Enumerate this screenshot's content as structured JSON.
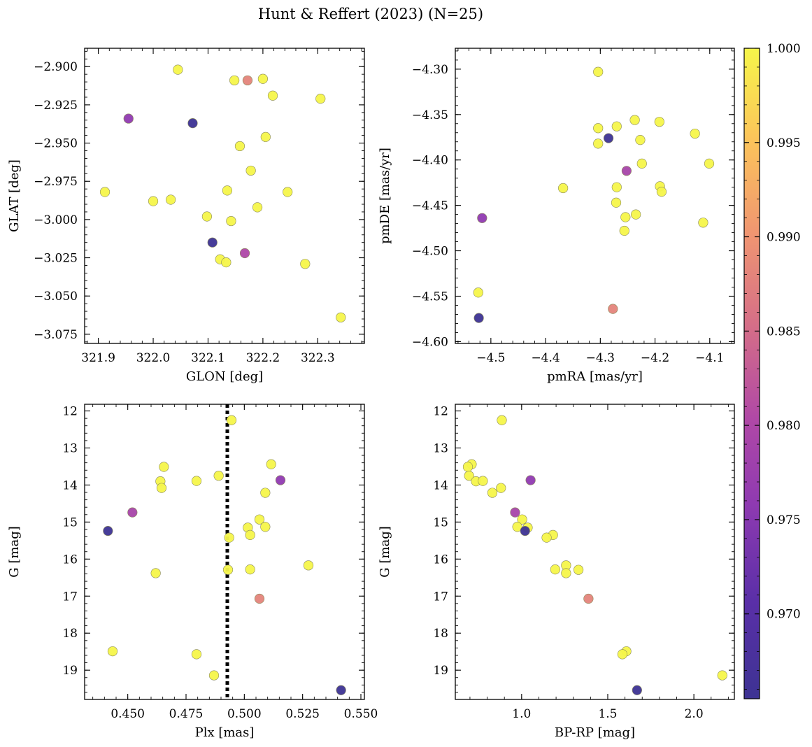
{
  "title": "Hunt & Reffert (2023) (N=25)",
  "colorbar": {
    "colormap": "plasma",
    "range": [
      0.9655,
      1.0
    ],
    "ticks": [
      0.97,
      0.975,
      0.98,
      0.985,
      0.99,
      0.995,
      1.0
    ],
    "tick_labels": [
      "0.970",
      "0.975",
      "0.980",
      "0.985",
      "0.990",
      "0.995",
      "1.000"
    ]
  },
  "chart_data": [
    {
      "type": "scatter",
      "id": "glon-glat",
      "xlabel": "GLON [deg]",
      "ylabel": "GLAT [deg]",
      "xlim": [
        321.875,
        322.385
      ],
      "ylim": [
        -2.888,
        -3.081
      ],
      "xticks": [
        321.9,
        322.0,
        322.1,
        322.2,
        322.3
      ],
      "xtick_labels": [
        "321.9",
        "322.0",
        "322.1",
        "322.2",
        "322.3"
      ],
      "yticks": [
        -2.9,
        -2.925,
        -2.95,
        -2.975,
        -3.0,
        -3.025,
        -3.05,
        -3.075
      ],
      "ytick_labels": [
        "−2.900",
        "−2.925",
        "−2.950",
        "−2.975",
        "−3.000",
        "−3.025",
        "−3.050",
        "−3.075"
      ],
      "points": [
        {
          "x": 322.045,
          "y": -2.902,
          "c": 1.0
        },
        {
          "x": 322.148,
          "y": -2.909,
          "c": 1.0
        },
        {
          "x": 322.172,
          "y": -2.909,
          "c": 0.988
        },
        {
          "x": 322.2,
          "y": -2.908,
          "c": 1.0
        },
        {
          "x": 322.218,
          "y": -2.919,
          "c": 1.0
        },
        {
          "x": 322.305,
          "y": -2.921,
          "c": 1.0
        },
        {
          "x": 321.955,
          "y": -2.934,
          "c": 0.976
        },
        {
          "x": 322.072,
          "y": -2.937,
          "c": 0.9655
        },
        {
          "x": 322.205,
          "y": -2.946,
          "c": 1.0
        },
        {
          "x": 322.158,
          "y": -2.952,
          "c": 1.0
        },
        {
          "x": 322.178,
          "y": -2.968,
          "c": 1.0
        },
        {
          "x": 321.912,
          "y": -2.982,
          "c": 1.0
        },
        {
          "x": 322.0,
          "y": -2.988,
          "c": 1.0
        },
        {
          "x": 322.032,
          "y": -2.987,
          "c": 1.0
        },
        {
          "x": 322.135,
          "y": -2.981,
          "c": 1.0
        },
        {
          "x": 322.245,
          "y": -2.982,
          "c": 1.0
        },
        {
          "x": 322.19,
          "y": -2.992,
          "c": 1.0
        },
        {
          "x": 322.098,
          "y": -2.998,
          "c": 1.0
        },
        {
          "x": 322.142,
          "y": -3.001,
          "c": 1.0
        },
        {
          "x": 322.108,
          "y": -3.015,
          "c": 0.9655
        },
        {
          "x": 322.167,
          "y": -3.022,
          "c": 0.98
        },
        {
          "x": 322.122,
          "y": -3.026,
          "c": 1.0
        },
        {
          "x": 322.133,
          "y": -3.028,
          "c": 1.0
        },
        {
          "x": 322.277,
          "y": -3.029,
          "c": 1.0
        },
        {
          "x": 322.342,
          "y": -3.064,
          "c": 1.0
        }
      ]
    },
    {
      "type": "scatter",
      "id": "pmra-pmde",
      "xlabel": "pmRA [mas/yr]",
      "ylabel": "pmDE [mas/yr]",
      "xlim": [
        -4.565,
        -4.055
      ],
      "ylim": [
        -4.277,
        -4.602
      ],
      "xticks": [
        -4.5,
        -4.4,
        -4.3,
        -4.2,
        -4.1
      ],
      "xtick_labels": [
        "−4.5",
        "−4.4",
        "−4.3",
        "−4.2",
        "−4.1"
      ],
      "yticks": [
        -4.3,
        -4.35,
        -4.4,
        -4.45,
        -4.5,
        -4.55,
        -4.6
      ],
      "ytick_labels": [
        "−4.30",
        "−4.35",
        "−4.40",
        "−4.45",
        "−4.50",
        "−4.55",
        "−4.60"
      ],
      "points": [
        {
          "x": -4.304,
          "y": -4.303,
          "c": 1.0
        },
        {
          "x": -4.237,
          "y": -4.356,
          "c": 1.0
        },
        {
          "x": -4.192,
          "y": -4.358,
          "c": 1.0
        },
        {
          "x": -4.304,
          "y": -4.365,
          "c": 1.0
        },
        {
          "x": -4.27,
          "y": -4.363,
          "c": 1.0
        },
        {
          "x": -4.127,
          "y": -4.371,
          "c": 1.0
        },
        {
          "x": -4.285,
          "y": -4.376,
          "c": 0.9655
        },
        {
          "x": -4.227,
          "y": -4.378,
          "c": 1.0
        },
        {
          "x": -4.304,
          "y": -4.382,
          "c": 1.0
        },
        {
          "x": -4.101,
          "y": -4.404,
          "c": 1.0
        },
        {
          "x": -4.224,
          "y": -4.404,
          "c": 1.0
        },
        {
          "x": -4.252,
          "y": -4.412,
          "c": 0.979
        },
        {
          "x": -4.368,
          "y": -4.431,
          "c": 1.0
        },
        {
          "x": -4.27,
          "y": -4.43,
          "c": 1.0
        },
        {
          "x": -4.191,
          "y": -4.429,
          "c": 1.0
        },
        {
          "x": -4.188,
          "y": -4.435,
          "c": 1.0
        },
        {
          "x": -4.271,
          "y": -4.447,
          "c": 1.0
        },
        {
          "x": -4.235,
          "y": -4.46,
          "c": 1.0
        },
        {
          "x": -4.254,
          "y": -4.463,
          "c": 1.0
        },
        {
          "x": -4.516,
          "y": -4.464,
          "c": 0.976
        },
        {
          "x": -4.112,
          "y": -4.469,
          "c": 1.0
        },
        {
          "x": -4.256,
          "y": -4.478,
          "c": 1.0
        },
        {
          "x": -4.523,
          "y": -4.546,
          "c": 1.0
        },
        {
          "x": -4.277,
          "y": -4.564,
          "c": 0.988
        },
        {
          "x": -4.522,
          "y": -4.574,
          "c": 0.9655
        }
      ]
    },
    {
      "type": "scatter",
      "id": "plx-g",
      "xlabel": "Plx [mas]",
      "ylabel": "G [mag]",
      "xlim": [
        0.4315,
        0.5515
      ],
      "ylim": [
        11.82,
        19.79
      ],
      "xticks": [
        0.45,
        0.475,
        0.5,
        0.525,
        0.55
      ],
      "xtick_labels": [
        "0.450",
        "0.475",
        "0.500",
        "0.525",
        "0.550"
      ],
      "yticks": [
        12,
        13,
        14,
        15,
        16,
        17,
        18,
        19
      ],
      "ytick_labels": [
        "12",
        "13",
        "14",
        "15",
        "16",
        "17",
        "18",
        "19"
      ],
      "vline": 0.4927,
      "points": [
        {
          "x": 0.4945,
          "y": 12.25,
          "c": 1.0
        },
        {
          "x": 0.5115,
          "y": 13.44,
          "c": 1.0
        },
        {
          "x": 0.4655,
          "y": 13.51,
          "c": 1.0
        },
        {
          "x": 0.489,
          "y": 13.75,
          "c": 1.0
        },
        {
          "x": 0.5155,
          "y": 13.87,
          "c": 0.976
        },
        {
          "x": 0.464,
          "y": 13.9,
          "c": 1.0
        },
        {
          "x": 0.4795,
          "y": 13.89,
          "c": 1.0
        },
        {
          "x": 0.4645,
          "y": 14.08,
          "c": 1.0
        },
        {
          "x": 0.509,
          "y": 14.21,
          "c": 1.0
        },
        {
          "x": 0.452,
          "y": 14.74,
          "c": 0.979
        },
        {
          "x": 0.5065,
          "y": 14.93,
          "c": 1.0
        },
        {
          "x": 0.5015,
          "y": 15.15,
          "c": 1.0
        },
        {
          "x": 0.509,
          "y": 15.13,
          "c": 1.0
        },
        {
          "x": 0.4415,
          "y": 15.24,
          "c": 0.9655
        },
        {
          "x": 0.5025,
          "y": 15.35,
          "c": 1.0
        },
        {
          "x": 0.4935,
          "y": 15.42,
          "c": 1.0
        },
        {
          "x": 0.5275,
          "y": 16.17,
          "c": 1.0
        },
        {
          "x": 0.5025,
          "y": 16.28,
          "c": 1.0
        },
        {
          "x": 0.493,
          "y": 16.29,
          "c": 1.0
        },
        {
          "x": 0.462,
          "y": 16.38,
          "c": 1.0
        },
        {
          "x": 0.5065,
          "y": 17.07,
          "c": 0.988
        },
        {
          "x": 0.4435,
          "y": 18.49,
          "c": 1.0
        },
        {
          "x": 0.4795,
          "y": 18.57,
          "c": 1.0
        },
        {
          "x": 0.487,
          "y": 19.14,
          "c": 1.0
        },
        {
          "x": 0.5415,
          "y": 19.54,
          "c": 0.9655
        }
      ]
    },
    {
      "type": "scatter",
      "id": "bprp-g",
      "xlabel": "BP-RP [mag]",
      "ylabel": "G [mag]",
      "xlim": [
        0.615,
        2.235
      ],
      "ylim": [
        11.82,
        19.79
      ],
      "xticks": [
        1.0,
        1.5,
        2.0
      ],
      "xtick_labels": [
        "1.0",
        "1.5",
        "2.0"
      ],
      "yticks": [
        12,
        13,
        14,
        15,
        16,
        17,
        18,
        19
      ],
      "ytick_labels": [
        "12",
        "13",
        "14",
        "15",
        "16",
        "17",
        "18",
        "19"
      ],
      "points": [
        {
          "x": 0.885,
          "y": 12.25,
          "c": 1.0
        },
        {
          "x": 0.71,
          "y": 13.44,
          "c": 1.0
        },
        {
          "x": 0.688,
          "y": 13.51,
          "c": 1.0
        },
        {
          "x": 0.695,
          "y": 13.75,
          "c": 1.0
        },
        {
          "x": 0.735,
          "y": 13.9,
          "c": 1.0
        },
        {
          "x": 0.775,
          "y": 13.89,
          "c": 1.0
        },
        {
          "x": 1.052,
          "y": 13.87,
          "c": 0.976
        },
        {
          "x": 0.88,
          "y": 14.08,
          "c": 1.0
        },
        {
          "x": 0.83,
          "y": 14.21,
          "c": 1.0
        },
        {
          "x": 0.962,
          "y": 14.74,
          "c": 0.979
        },
        {
          "x": 1.003,
          "y": 14.93,
          "c": 1.0
        },
        {
          "x": 0.975,
          "y": 15.13,
          "c": 1.0
        },
        {
          "x": 1.035,
          "y": 15.15,
          "c": 1.0
        },
        {
          "x": 1.02,
          "y": 15.24,
          "c": 0.9655
        },
        {
          "x": 1.182,
          "y": 15.35,
          "c": 1.0
        },
        {
          "x": 1.145,
          "y": 15.42,
          "c": 1.0
        },
        {
          "x": 1.258,
          "y": 16.17,
          "c": 1.0
        },
        {
          "x": 1.195,
          "y": 16.28,
          "c": 1.0
        },
        {
          "x": 1.33,
          "y": 16.29,
          "c": 1.0
        },
        {
          "x": 1.258,
          "y": 16.38,
          "c": 1.0
        },
        {
          "x": 1.388,
          "y": 17.07,
          "c": 0.988
        },
        {
          "x": 1.608,
          "y": 18.49,
          "c": 1.0
        },
        {
          "x": 1.585,
          "y": 18.57,
          "c": 1.0
        },
        {
          "x": 2.165,
          "y": 19.14,
          "c": 1.0
        },
        {
          "x": 1.67,
          "y": 19.54,
          "c": 0.9655
        }
      ]
    }
  ]
}
